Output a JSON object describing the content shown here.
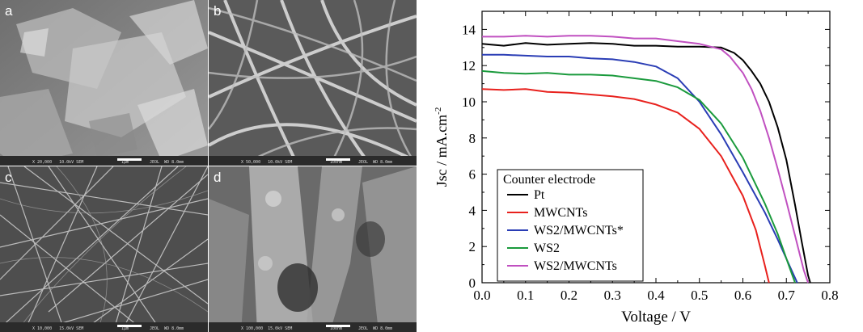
{
  "sem_panels": [
    {
      "letter": "a",
      "info_left": "X 20,000   10.0kV SEM",
      "scale_label": "1μm",
      "info_right": "JEOL  WD 8.0mm"
    },
    {
      "letter": "b",
      "info_left": "X 50,000   10.0kV SEM",
      "scale_label": "100nm",
      "info_right": "JEOL  WD 8.0mm"
    },
    {
      "letter": "c",
      "info_left": "X 10,000   15.0kV SEM",
      "scale_label": "1μm",
      "info_right": "JEOL  WD 8.0mm"
    },
    {
      "letter": "d",
      "info_left": "X 100,000  15.0kV SEM",
      "scale_label": "100nm",
      "info_right": "JEOL  WD 8.0mm"
    }
  ],
  "chart_data": {
    "type": "line",
    "title": "",
    "xlabel": "Voltage / V",
    "ylabel": "Jsc / mA.cm",
    "ylabel_sup": "-2",
    "xlim": [
      0.0,
      0.8
    ],
    "ylim": [
      0,
      15
    ],
    "xticks": [
      "0.0",
      "0.1",
      "0.2",
      "0.3",
      "0.4",
      "0.5",
      "0.6",
      "0.7",
      "0.8"
    ],
    "yticks": [
      "0",
      "2",
      "4",
      "6",
      "8",
      "10",
      "12",
      "14"
    ],
    "grid": false,
    "legend_title": "Counter electrode",
    "legend_position": "lower-left",
    "series": [
      {
        "name": "Pt",
        "color": "#000000",
        "points": [
          [
            0,
            13.2
          ],
          [
            0.05,
            13.1
          ],
          [
            0.1,
            13.25
          ],
          [
            0.15,
            13.15
          ],
          [
            0.2,
            13.2
          ],
          [
            0.25,
            13.25
          ],
          [
            0.3,
            13.2
          ],
          [
            0.35,
            13.1
          ],
          [
            0.4,
            13.1
          ],
          [
            0.45,
            13.05
          ],
          [
            0.5,
            13.05
          ],
          [
            0.55,
            13.0
          ],
          [
            0.58,
            12.7
          ],
          [
            0.6,
            12.3
          ],
          [
            0.62,
            11.7
          ],
          [
            0.64,
            11.0
          ],
          [
            0.66,
            10.0
          ],
          [
            0.68,
            8.6
          ],
          [
            0.7,
            6.8
          ],
          [
            0.72,
            4.3
          ],
          [
            0.735,
            2.3
          ],
          [
            0.75,
            0.4
          ],
          [
            0.755,
            0
          ]
        ]
      },
      {
        "name": "MWCNTs",
        "color": "#e8211d",
        "points": [
          [
            0,
            10.7
          ],
          [
            0.05,
            10.65
          ],
          [
            0.1,
            10.7
          ],
          [
            0.15,
            10.55
          ],
          [
            0.2,
            10.5
          ],
          [
            0.25,
            10.4
          ],
          [
            0.3,
            10.3
          ],
          [
            0.35,
            10.15
          ],
          [
            0.4,
            9.85
          ],
          [
            0.45,
            9.4
          ],
          [
            0.5,
            8.5
          ],
          [
            0.55,
            7.0
          ],
          [
            0.6,
            4.8
          ],
          [
            0.63,
            2.9
          ],
          [
            0.65,
            1.0
          ],
          [
            0.66,
            0
          ]
        ]
      },
      {
        "name": "WS2/MWCNTs*",
        "color": "#2a3db5",
        "points": [
          [
            0,
            12.6
          ],
          [
            0.05,
            12.6
          ],
          [
            0.1,
            12.55
          ],
          [
            0.15,
            12.5
          ],
          [
            0.2,
            12.5
          ],
          [
            0.25,
            12.4
          ],
          [
            0.3,
            12.35
          ],
          [
            0.35,
            12.2
          ],
          [
            0.4,
            11.95
          ],
          [
            0.45,
            11.3
          ],
          [
            0.5,
            10.0
          ],
          [
            0.55,
            8.2
          ],
          [
            0.6,
            6.1
          ],
          [
            0.65,
            3.9
          ],
          [
            0.68,
            2.4
          ],
          [
            0.71,
            0.8
          ],
          [
            0.725,
            0
          ]
        ]
      },
      {
        "name": "WS2",
        "color": "#1a9a3c",
        "points": [
          [
            0,
            11.7
          ],
          [
            0.05,
            11.6
          ],
          [
            0.1,
            11.55
          ],
          [
            0.15,
            11.6
          ],
          [
            0.2,
            11.5
          ],
          [
            0.25,
            11.5
          ],
          [
            0.3,
            11.45
          ],
          [
            0.35,
            11.3
          ],
          [
            0.4,
            11.15
          ],
          [
            0.45,
            10.8
          ],
          [
            0.5,
            10.1
          ],
          [
            0.55,
            8.8
          ],
          [
            0.6,
            6.9
          ],
          [
            0.65,
            4.4
          ],
          [
            0.68,
            2.7
          ],
          [
            0.705,
            1.0
          ],
          [
            0.72,
            0
          ]
        ]
      },
      {
        "name": "WS2/MWCNTs",
        "color": "#c050c0",
        "points": [
          [
            0,
            13.6
          ],
          [
            0.05,
            13.6
          ],
          [
            0.1,
            13.65
          ],
          [
            0.15,
            13.6
          ],
          [
            0.2,
            13.65
          ],
          [
            0.25,
            13.65
          ],
          [
            0.3,
            13.6
          ],
          [
            0.35,
            13.5
          ],
          [
            0.4,
            13.5
          ],
          [
            0.45,
            13.35
          ],
          [
            0.5,
            13.2
          ],
          [
            0.55,
            12.9
          ],
          [
            0.57,
            12.5
          ],
          [
            0.6,
            11.6
          ],
          [
            0.62,
            10.7
          ],
          [
            0.64,
            9.5
          ],
          [
            0.66,
            8.0
          ],
          [
            0.68,
            6.3
          ],
          [
            0.7,
            4.5
          ],
          [
            0.72,
            2.6
          ],
          [
            0.74,
            0.7
          ],
          [
            0.75,
            0
          ]
        ]
      }
    ]
  }
}
